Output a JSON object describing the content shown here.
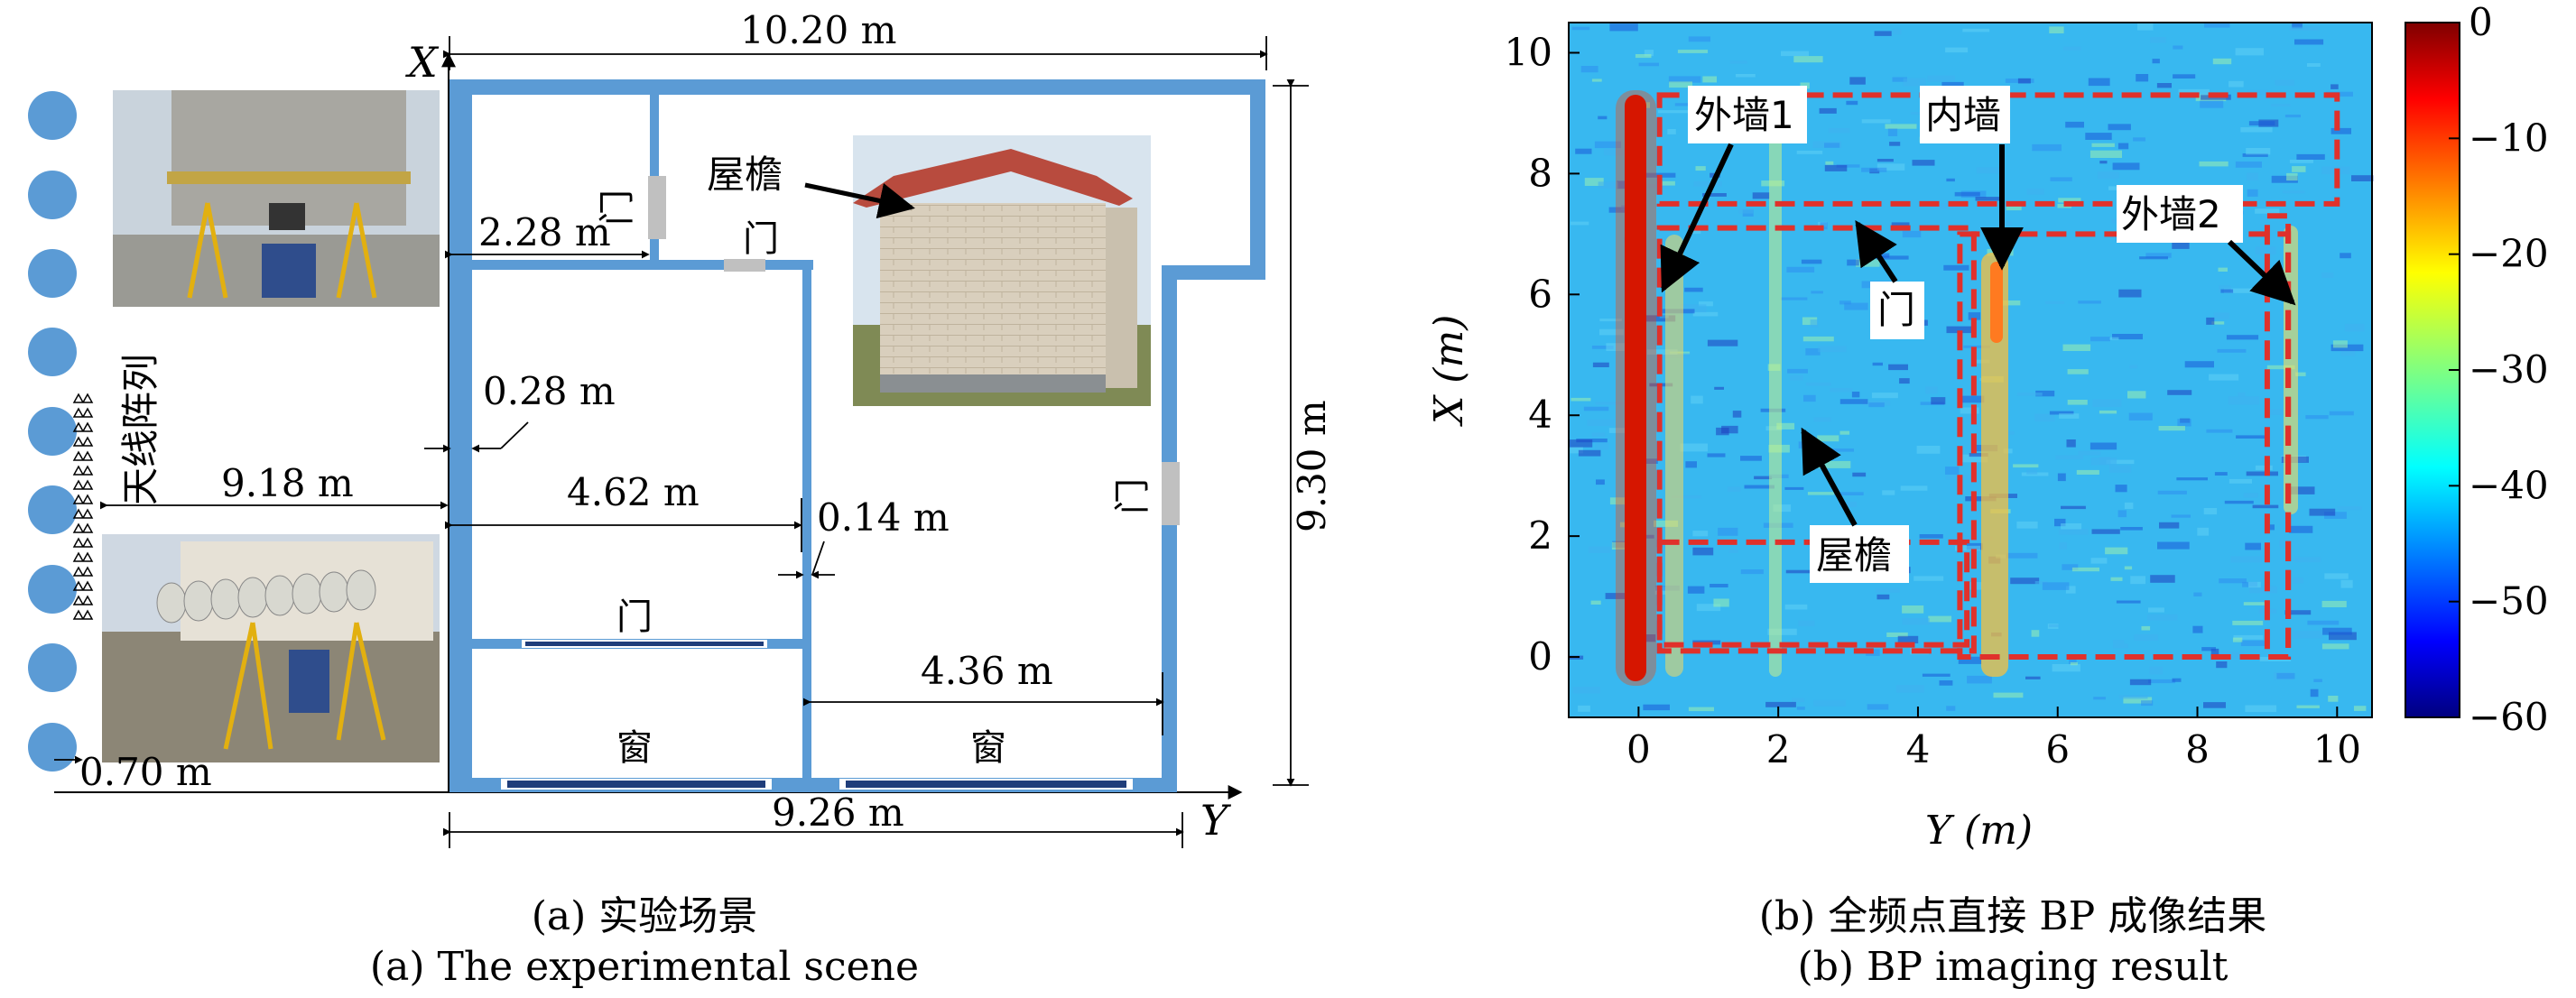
{
  "panel_a": {
    "axis_x": "X",
    "axis_y": "Y",
    "antenna_label": "天线阵列",
    "dims": {
      "top_width": "10.20 m",
      "right_height": "9.30 m",
      "bottom_width": "9.26 m",
      "distance": "9.18 m",
      "corridor": "2.28 m",
      "wall_thickness": "0.28 m",
      "room_width": "4.62 m",
      "inner_wall": "0.14 m",
      "right_room": "4.36 m",
      "array_offset": "0.70 m"
    },
    "labels": {
      "door_left": "门",
      "door_top": "门",
      "door_right": "门",
      "door_inner": "门",
      "window_left": "窗",
      "window_right": "窗",
      "eave": "屋檐"
    },
    "caption_cn": "(a) 实验场景",
    "caption_en": "(a) The experimental scene"
  },
  "panel_b": {
    "caption_cn": "(b) 全频点直接 BP 成像结果",
    "caption_en": "(b) BP imaging result",
    "annotations": {
      "outer_wall_1": "外墙1",
      "inner_wall": "内墙",
      "outer_wall_2": "外墙2",
      "door": "门",
      "eave": "屋檐"
    }
  },
  "colors": {
    "wall": "#5b9bd5",
    "window": "#1f3d7a",
    "door": "#c0c0c0",
    "target_box": "#e0312b",
    "colormap": [
      "#7f0000",
      "#ff0000",
      "#ff8000",
      "#ffff00",
      "#80ff80",
      "#00ffff",
      "#0080ff",
      "#0000ff",
      "#00007f"
    ]
  },
  "chart_data": {
    "type": "heatmap",
    "xlabel": "Y (m)",
    "ylabel": "X (m)",
    "x_ticks": [
      "0",
      "2",
      "4",
      "6",
      "8",
      "10"
    ],
    "y_ticks": [
      "0",
      "2",
      "4",
      "6",
      "8",
      "10"
    ],
    "xlim": [
      -1,
      10.5
    ],
    "ylim": [
      -1,
      10.5
    ],
    "colorbar_ticks": [
      "0",
      "−10",
      "−20",
      "−30",
      "−40",
      "−50",
      "−60"
    ],
    "colorbar_range": [
      -60,
      0
    ],
    "colormap": "jet",
    "target_boxes_m": [
      {
        "y0": 0.3,
        "y1": 10.0,
        "x0": 7.5,
        "x1": 9.3
      },
      {
        "y0": 0.3,
        "y1": 4.8,
        "x0": 0.1,
        "x1": 7.1
      },
      {
        "y0": 0.3,
        "y1": 4.7,
        "x0": 0.2,
        "x1": 1.9
      },
      {
        "y0": 4.6,
        "y1": 9.3,
        "x0": 0.0,
        "x1": 7.0
      },
      {
        "y0": 9.0,
        "y1": 9.3,
        "x0": 0.0,
        "x1": 7.3
      }
    ]
  }
}
